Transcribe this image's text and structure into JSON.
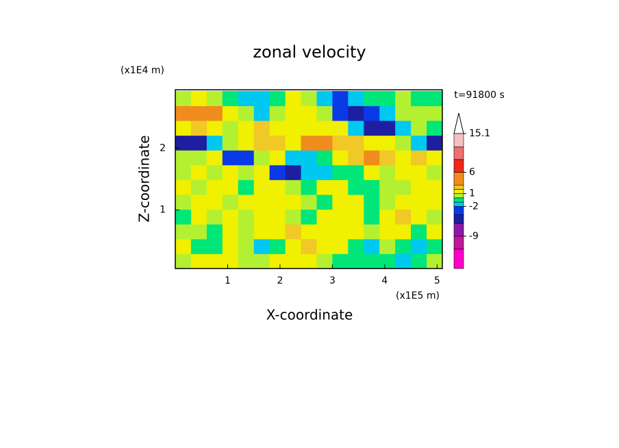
{
  "chart_data": {
    "type": "contour",
    "title": "zonal velocity",
    "x_label": "X-coordinate",
    "y_label": "Z-coordinate",
    "x_unit": "(x1E5 m)",
    "y_unit": "(x1E4 m)",
    "time_label": "t=91800 s",
    "xlim": [
      0,
      5.1
    ],
    "ylim": [
      0.05,
      2.95
    ],
    "xticks": [
      1,
      2,
      3,
      4,
      5
    ],
    "yticks": [
      1,
      2
    ],
    "x": [
      0.15,
      0.45,
      0.75,
      1.05,
      1.35,
      1.65,
      1.95,
      2.25,
      2.55,
      2.85,
      3.15,
      3.45,
      3.75,
      4.05,
      4.35,
      4.65,
      4.95
    ],
    "y": [
      0.17,
      0.41,
      0.65,
      0.89,
      1.13,
      1.37,
      1.61,
      1.85,
      2.09,
      2.33,
      2.57,
      2.81
    ],
    "z": [
      [
        0.5,
        1.5,
        1.5,
        1.5,
        0.5,
        0.5,
        1.5,
        1.5,
        1.5,
        0.5,
        -0.5,
        -0.5,
        -0.5,
        -0.5,
        -1.5,
        -0.5,
        0.5
      ],
      [
        1.5,
        -0.5,
        -0.5,
        1.5,
        0.5,
        -1.5,
        -0.5,
        1.5,
        2.5,
        1.5,
        1.5,
        -0.5,
        -1.5,
        0.5,
        -0.5,
        -1.5,
        -0.5
      ],
      [
        0.5,
        0.5,
        -0.5,
        1.5,
        0.5,
        1.5,
        1.5,
        2.5,
        1.5,
        1.5,
        1.5,
        1.5,
        0.5,
        1.5,
        1.5,
        -0.5,
        1.5
      ],
      [
        -0.5,
        1.5,
        0.5,
        1.5,
        0.5,
        1.5,
        1.5,
        0.5,
        -0.5,
        1.5,
        1.5,
        1.5,
        -0.5,
        1.5,
        2.5,
        1.5,
        0.5
      ],
      [
        0.5,
        1.5,
        1.5,
        0.5,
        1.5,
        1.5,
        1.5,
        1.5,
        0.5,
        -0.5,
        1.5,
        1.5,
        -0.5,
        0.5,
        1.5,
        1.5,
        1.5
      ],
      [
        1.5,
        0.5,
        1.5,
        1.5,
        -0.5,
        1.5,
        1.5,
        0.5,
        -0.5,
        1.5,
        1.5,
        -0.5,
        -0.5,
        0.5,
        0.5,
        1.5,
        1.5
      ],
      [
        0.5,
        1.5,
        0.5,
        1.5,
        0.5,
        1.5,
        -3,
        -5,
        -1.5,
        -1.5,
        -0.5,
        -0.5,
        1.5,
        0.5,
        1.5,
        1.5,
        0.5
      ],
      [
        0.5,
        0.5,
        1.5,
        -3,
        -3,
        0.5,
        1.5,
        -1.5,
        -1.5,
        -0.5,
        1.5,
        2.5,
        4,
        2.5,
        1.5,
        2.5,
        1.5
      ],
      [
        -5,
        -5,
        -1.5,
        0.5,
        1.5,
        2.5,
        2.5,
        1.5,
        4,
        4,
        2.5,
        2.5,
        1.5,
        1.5,
        0.5,
        -1.5,
        -5
      ],
      [
        1.5,
        2.5,
        1.5,
        0.5,
        1.5,
        2.5,
        1.5,
        1.5,
        1.5,
        1.5,
        1.5,
        -1.5,
        -5,
        -5,
        -1.5,
        0.5,
        -0.5
      ],
      [
        4,
        4,
        3,
        1.5,
        0.5,
        -1.5,
        0.5,
        1.5,
        1.5,
        0.5,
        -3,
        -5,
        -3,
        -1.5,
        0.5,
        0.5,
        0.5
      ],
      [
        0.5,
        1.5,
        0.5,
        -0.5,
        -1.5,
        -1.5,
        -0.5,
        1.5,
        0.5,
        -1.5,
        -3,
        -1.5,
        -0.5,
        -0.5,
        0.5,
        -0.5,
        -0.5
      ]
    ],
    "levels": [
      -16.6,
      -12,
      -9,
      -6,
      -4,
      -2,
      -1,
      0,
      1,
      2,
      3,
      6,
      9,
      12,
      15.1
    ],
    "colors": [
      "#ff00c8",
      "#c0169a",
      "#8a1aa8",
      "#1e1ea0",
      "#0a3ae6",
      "#00c8f0",
      "#00e678",
      "#b4f032",
      "#f0f000",
      "#f0c828",
      "#f08c1e",
      "#f02818",
      "#f07070",
      "#f5c0c0"
    ],
    "colorbar_ticks": [
      15.1,
      6,
      1,
      -2,
      -9
    ]
  }
}
